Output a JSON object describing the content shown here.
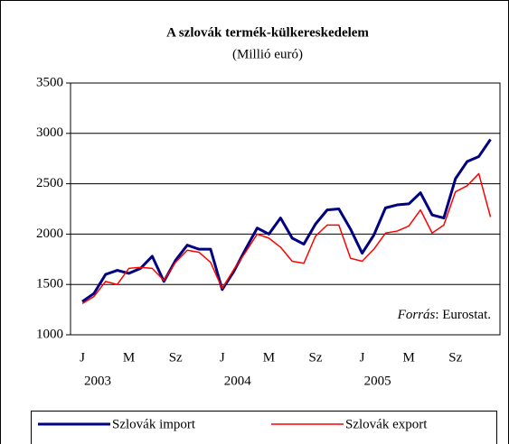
{
  "chart_data": {
    "type": "line",
    "title": "A szlovák termék-külkereskedelem",
    "subtitle": "(Millió euró)",
    "annotation": {
      "label": "Forrás",
      "text": ": Eurostat."
    },
    "categories": [
      "J",
      null,
      null,
      null,
      "M",
      null,
      null,
      null,
      "Sz",
      null,
      null,
      null,
      "J",
      null,
      null,
      null,
      "M",
      null,
      null,
      null,
      "Sz",
      null,
      null,
      null,
      "J",
      null,
      null,
      null,
      "M",
      null,
      null,
      null,
      "Sz",
      null,
      null,
      null
    ],
    "years": [
      "2003",
      "2004",
      "2005"
    ],
    "ylim": [
      1000,
      3500
    ],
    "yticks": [
      1000,
      1500,
      2000,
      2500,
      3000,
      3500
    ],
    "grid": true,
    "legend": "bottom",
    "series": [
      {
        "name": "Szlovák import",
        "color": "#000080",
        "values": [
          1330,
          1410,
          1600,
          1640,
          1610,
          1660,
          1780,
          1530,
          1740,
          1890,
          1850,
          1850,
          1450,
          1630,
          1850,
          2060,
          2000,
          2160,
          1960,
          1900,
          2100,
          2240,
          2250,
          2050,
          1810,
          1990,
          2260,
          2290,
          2300,
          2410,
          2190,
          2160,
          2550,
          2720,
          2770,
          2940
        ]
      },
      {
        "name": "Szlovák export",
        "color": "#ff0000",
        "values": [
          1310,
          1380,
          1530,
          1500,
          1660,
          1670,
          1660,
          1540,
          1720,
          1840,
          1820,
          1720,
          1460,
          1650,
          1820,
          2000,
          1960,
          1870,
          1730,
          1710,
          1980,
          2090,
          2090,
          1760,
          1730,
          1850,
          2010,
          2030,
          2080,
          2240,
          2010,
          2090,
          2420,
          2480,
          2600,
          2170
        ]
      }
    ]
  }
}
